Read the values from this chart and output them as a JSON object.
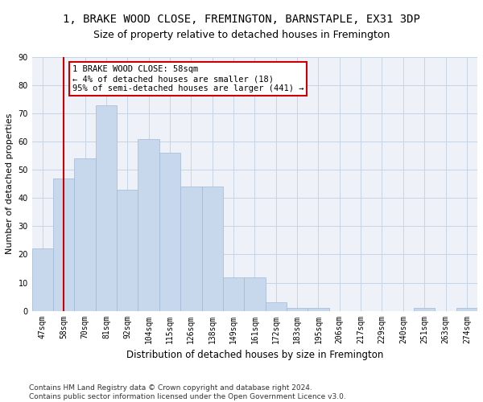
{
  "title": "1, BRAKE WOOD CLOSE, FREMINGTON, BARNSTAPLE, EX31 3DP",
  "subtitle": "Size of property relative to detached houses in Fremington",
  "xlabel": "Distribution of detached houses by size in Fremington",
  "ylabel": "Number of detached properties",
  "categories": [
    "47sqm",
    "58sqm",
    "70sqm",
    "81sqm",
    "92sqm",
    "104sqm",
    "115sqm",
    "126sqm",
    "138sqm",
    "149sqm",
    "161sqm",
    "172sqm",
    "183sqm",
    "195sqm",
    "206sqm",
    "217sqm",
    "229sqm",
    "240sqm",
    "251sqm",
    "263sqm",
    "274sqm"
  ],
  "values": [
    22,
    47,
    54,
    73,
    43,
    61,
    56,
    44,
    44,
    12,
    12,
    3,
    1,
    1,
    0,
    0,
    0,
    0,
    1,
    0,
    1
  ],
  "bar_color": "#c8d8ec",
  "bar_edge_color": "#a0b8d8",
  "highlight_line_color": "#cc0000",
  "background_color": "#ffffff",
  "plot_background": "#eef2f8",
  "grid_color": "#c5d5e5",
  "annotation_text": "1 BRAKE WOOD CLOSE: 58sqm\n← 4% of detached houses are smaller (18)\n95% of semi-detached houses are larger (441) →",
  "annotation_box_color": "#ffffff",
  "annotation_box_edge": "#cc0000",
  "footer": "Contains HM Land Registry data © Crown copyright and database right 2024.\nContains public sector information licensed under the Open Government Licence v3.0.",
  "ylim": [
    0,
    90
  ],
  "yticks": [
    0,
    10,
    20,
    30,
    40,
    50,
    60,
    70,
    80,
    90
  ],
  "title_fontsize": 10,
  "subtitle_fontsize": 9,
  "xlabel_fontsize": 8.5,
  "ylabel_fontsize": 8,
  "tick_fontsize": 7,
  "annotation_fontsize": 7.5,
  "footer_fontsize": 6.5
}
